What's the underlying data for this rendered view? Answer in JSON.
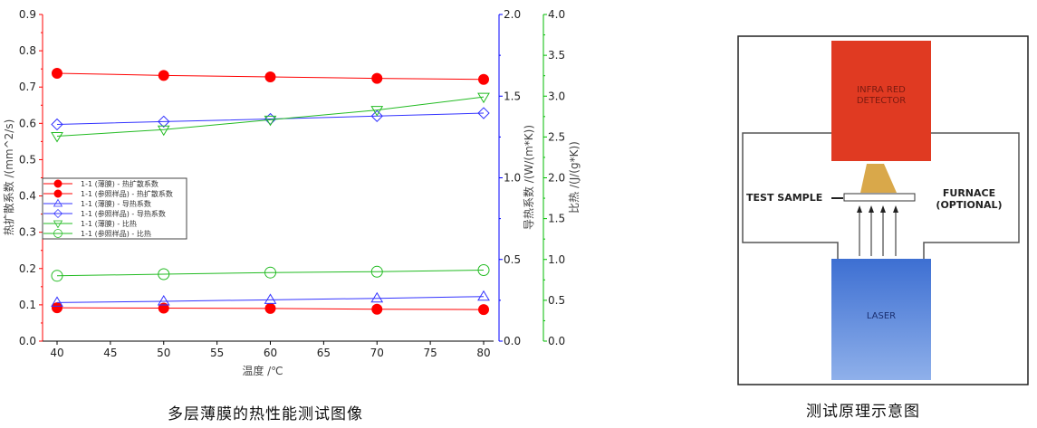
{
  "chart_data": {
    "type": "line",
    "xlabel": "温度 /℃",
    "x": [
      40,
      50,
      60,
      70,
      80
    ],
    "xlim": [
      40,
      80
    ],
    "xticks": [
      40,
      45,
      50,
      55,
      60,
      65,
      70,
      75,
      80
    ],
    "axes": {
      "left": {
        "label": "热扩散系数 /(mm^2/s)",
        "ylim": [
          0,
          0.9
        ],
        "ticks": [
          "0.0",
          "0.1",
          "0.2",
          "0.3",
          "0.4",
          "0.5",
          "0.6",
          "0.7",
          "0.8",
          "0.9"
        ],
        "color": "#ff0000"
      },
      "right1": {
        "label": "导热系数 /(W/(m*K))",
        "ylim": [
          0,
          2.0
        ],
        "ticks": [
          "0.0",
          "0.5",
          "1.0",
          "1.5",
          "2.0"
        ],
        "color": "#0000ff"
      },
      "right2": {
        "label": "比热 /(J/(g*K))",
        "ylim": [
          0,
          4.0
        ],
        "ticks": [
          "0.0",
          "0.5",
          "1.0",
          "1.5",
          "2.0",
          "2.5",
          "3.0",
          "3.5",
          "4.0"
        ],
        "color": "#00bb00"
      }
    },
    "series": [
      {
        "name": "1-1 (薄膜) - 热扩散系数",
        "axis": "left",
        "marker": "filled-circle",
        "color": "#ff0000",
        "values": [
          0.092,
          0.091,
          0.09,
          0.088,
          0.087
        ]
      },
      {
        "name": "1-1 (参照样品) - 热扩散系数",
        "axis": "left",
        "marker": "filled-circle",
        "color": "#ff0000",
        "values": [
          0.738,
          0.732,
          0.728,
          0.724,
          0.721
        ]
      },
      {
        "name": "1-1 (薄膜) - 导热系数",
        "axis": "right1",
        "marker": "triangle-up",
        "color": "#3333ff",
        "values": [
          0.236,
          0.244,
          0.253,
          0.262,
          0.273
        ]
      },
      {
        "name": "1-1 (参照样品) - 导热系数",
        "axis": "right1",
        "marker": "diamond",
        "color": "#3333ff",
        "values": [
          1.327,
          1.344,
          1.36,
          1.378,
          1.396
        ]
      },
      {
        "name": "1-1 (薄膜) - 比热",
        "axis": "right2",
        "marker": "triangle-down",
        "color": "#22bb22",
        "values": [
          2.51,
          2.59,
          2.71,
          2.83,
          2.99
        ]
      },
      {
        "name": "1-1 (参照样品) - 比热",
        "axis": "right2",
        "marker": "circle",
        "color": "#22bb22",
        "values": [
          0.8,
          0.82,
          0.84,
          0.85,
          0.87
        ]
      }
    ],
    "legend": "center-left",
    "grid": false
  },
  "captions": {
    "left": "多层薄膜的热性能测试图像",
    "right": "测试原理示意图"
  },
  "diagram": {
    "detector": "INFRA RED DETECTOR",
    "detector_lines": [
      "INFRA RED",
      "DETECTOR"
    ],
    "sample": "TEST SAMPLE",
    "furnace_lines": [
      "FURNACE",
      "(OPTIONAL)"
    ],
    "laser": "LASER",
    "colors": {
      "detector": "#e03a22",
      "laser": "#4a7fd8",
      "cone": "#d9a84a"
    }
  }
}
